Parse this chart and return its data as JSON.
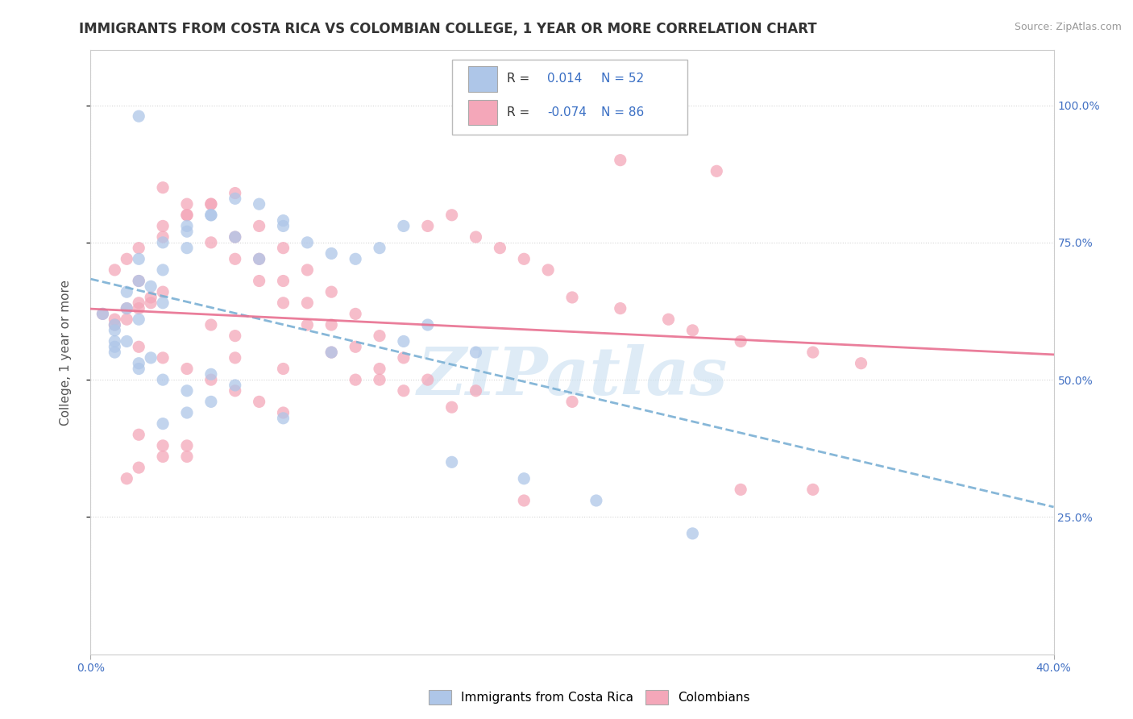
{
  "title": "IMMIGRANTS FROM COSTA RICA VS COLOMBIAN COLLEGE, 1 YEAR OR MORE CORRELATION CHART",
  "source": "Source: ZipAtlas.com",
  "ylabel": "College, 1 year or more",
  "xlim": [
    0.0,
    0.4
  ],
  "ylim": [
    0.0,
    1.1
  ],
  "legend_label1": "Immigrants from Costa Rica",
  "legend_label2": "Colombians",
  "R1": 0.014,
  "N1": 52,
  "R2": -0.074,
  "N2": 86,
  "color1": "#aec6e8",
  "color2": "#f4a7b9",
  "trend_color1": "#7ab0d4",
  "trend_color2": "#e87090",
  "background_color": "#ffffff",
  "grid_color": "#cccccc",
  "watermark_text": "ZIPatlas",
  "watermark_color": "#c8dff0",
  "title_fontsize": 12,
  "axis_label_fontsize": 11,
  "tick_fontsize": 10,
  "legend_r_color": "#3a6fc4",
  "legend_text_color": "#333333",
  "scatter1_x": [
    0.02,
    0.01,
    0.005,
    0.015,
    0.01,
    0.02,
    0.03,
    0.01,
    0.025,
    0.015,
    0.02,
    0.04,
    0.03,
    0.05,
    0.04,
    0.06,
    0.05,
    0.07,
    0.06,
    0.08,
    0.03,
    0.02,
    0.04,
    0.07,
    0.08,
    0.09,
    0.1,
    0.11,
    0.12,
    0.13,
    0.01,
    0.02,
    0.015,
    0.01,
    0.025,
    0.02,
    0.03,
    0.04,
    0.05,
    0.06,
    0.05,
    0.04,
    0.03,
    0.08,
    0.1,
    0.13,
    0.16,
    0.15,
    0.18,
    0.21,
    0.25,
    0.14
  ],
  "scatter1_y": [
    0.98,
    0.6,
    0.62,
    0.63,
    0.59,
    0.61,
    0.64,
    0.57,
    0.67,
    0.66,
    0.72,
    0.78,
    0.75,
    0.8,
    0.77,
    0.83,
    0.8,
    0.82,
    0.76,
    0.78,
    0.7,
    0.68,
    0.74,
    0.72,
    0.79,
    0.75,
    0.73,
    0.72,
    0.74,
    0.78,
    0.55,
    0.53,
    0.57,
    0.56,
    0.54,
    0.52,
    0.5,
    0.48,
    0.51,
    0.49,
    0.46,
    0.44,
    0.42,
    0.43,
    0.55,
    0.57,
    0.55,
    0.35,
    0.32,
    0.28,
    0.22,
    0.6
  ],
  "scatter2_x": [
    0.005,
    0.01,
    0.015,
    0.02,
    0.01,
    0.025,
    0.02,
    0.015,
    0.03,
    0.025,
    0.02,
    0.01,
    0.015,
    0.02,
    0.03,
    0.04,
    0.03,
    0.05,
    0.04,
    0.06,
    0.05,
    0.07,
    0.06,
    0.08,
    0.07,
    0.09,
    0.08,
    0.1,
    0.09,
    0.11,
    0.1,
    0.12,
    0.11,
    0.13,
    0.12,
    0.14,
    0.13,
    0.15,
    0.14,
    0.16,
    0.17,
    0.18,
    0.19,
    0.2,
    0.22,
    0.24,
    0.25,
    0.27,
    0.3,
    0.32,
    0.03,
    0.04,
    0.05,
    0.06,
    0.07,
    0.08,
    0.09,
    0.1,
    0.12,
    0.15,
    0.02,
    0.03,
    0.04,
    0.05,
    0.06,
    0.07,
    0.08,
    0.02,
    0.03,
    0.04,
    0.05,
    0.06,
    0.22,
    0.26,
    0.3,
    0.2,
    0.16,
    0.11,
    0.08,
    0.06,
    0.04,
    0.03,
    0.02,
    0.015,
    0.27,
    0.18
  ],
  "scatter2_y": [
    0.62,
    0.61,
    0.63,
    0.64,
    0.6,
    0.65,
    0.63,
    0.61,
    0.66,
    0.64,
    0.68,
    0.7,
    0.72,
    0.74,
    0.76,
    0.8,
    0.78,
    0.82,
    0.8,
    0.84,
    0.82,
    0.78,
    0.76,
    0.74,
    0.72,
    0.7,
    0.68,
    0.66,
    0.64,
    0.62,
    0.6,
    0.58,
    0.56,
    0.54,
    0.52,
    0.5,
    0.48,
    0.8,
    0.78,
    0.76,
    0.74,
    0.72,
    0.7,
    0.65,
    0.63,
    0.61,
    0.59,
    0.57,
    0.55,
    0.53,
    0.85,
    0.82,
    0.75,
    0.72,
    0.68,
    0.64,
    0.6,
    0.55,
    0.5,
    0.45,
    0.56,
    0.54,
    0.52,
    0.5,
    0.48,
    0.46,
    0.44,
    0.4,
    0.38,
    0.36,
    0.6,
    0.58,
    0.9,
    0.88,
    0.3,
    0.46,
    0.48,
    0.5,
    0.52,
    0.54,
    0.38,
    0.36,
    0.34,
    0.32,
    0.3,
    0.28
  ]
}
